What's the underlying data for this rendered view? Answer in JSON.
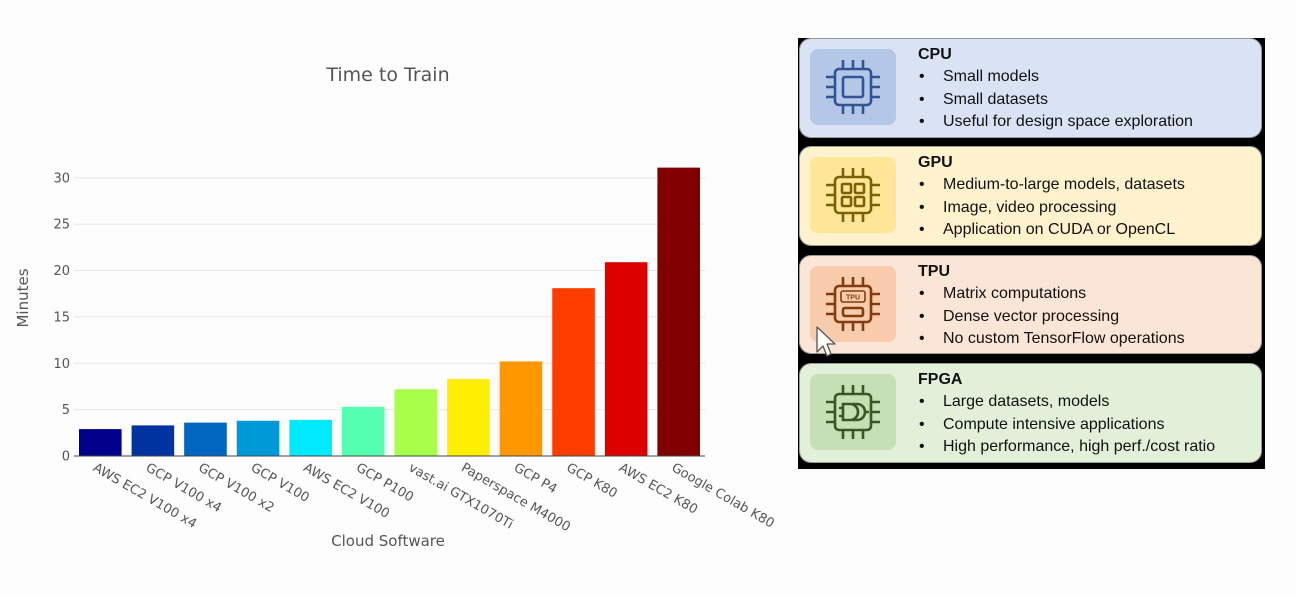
{
  "chart_data": {
    "type": "bar",
    "title": "Time to Train",
    "xlabel": "Cloud Software",
    "ylabel": "Minutes",
    "ylim": [
      0,
      33
    ],
    "yticks": [
      0,
      5,
      10,
      15,
      20,
      25,
      30
    ],
    "grid": true,
    "categories": [
      "AWS EC2 V100 x4",
      "GCP V100 x4",
      "GCP V100 x2",
      "GCP V100",
      "AWS EC2 V100",
      "GCP P100",
      "vast.ai GTX1070Ti",
      "Paperspace M4000",
      "GCP P4",
      "GCP K80",
      "AWS EC2 K80",
      "Google Colab K80"
    ],
    "values": [
      2.9,
      3.3,
      3.6,
      3.8,
      3.9,
      5.3,
      7.2,
      8.3,
      10.2,
      18.1,
      20.9,
      31.1
    ],
    "colors": [
      "#00008b",
      "#0033a0",
      "#0066c0",
      "#0099d8",
      "#00eaff",
      "#55ffb0",
      "#a8ff4a",
      "#ffee00",
      "#ff9800",
      "#ff3d00",
      "#dd0000",
      "#800000"
    ]
  },
  "panel": {
    "cards": [
      {
        "title": "CPU",
        "items": [
          "Small models",
          "Small datasets",
          "Useful for design space exploration"
        ],
        "icon": "cpu-chip-icon",
        "bg": "#dae3f3",
        "icon_bg": "#b4c7e7",
        "icon_color": "#2f5597"
      },
      {
        "title": "GPU",
        "items": [
          "Medium-to-large models, datasets",
          "Image, video processing",
          "Application on CUDA or OpenCL"
        ],
        "icon": "gpu-chip-icon",
        "bg": "#fff2cc",
        "icon_bg": "#ffe699",
        "icon_color": "#7f6000"
      },
      {
        "title": "TPU",
        "items": [
          "Matrix computations",
          "Dense vector processing",
          "No custom TensorFlow operations"
        ],
        "icon": "tpu-chip-icon",
        "icon_text": "TPU",
        "bg": "#fbe5d6",
        "icon_bg": "#f8cbad",
        "icon_color": "#843c0c"
      },
      {
        "title": "FPGA",
        "items": [
          "Large datasets, models",
          "Compute intensive applications",
          "High performance, high perf./cost ratio"
        ],
        "icon": "fpga-chip-icon",
        "bg": "#e2f0d9",
        "icon_bg": "#c5e0b4",
        "icon_color": "#385723"
      }
    ]
  }
}
